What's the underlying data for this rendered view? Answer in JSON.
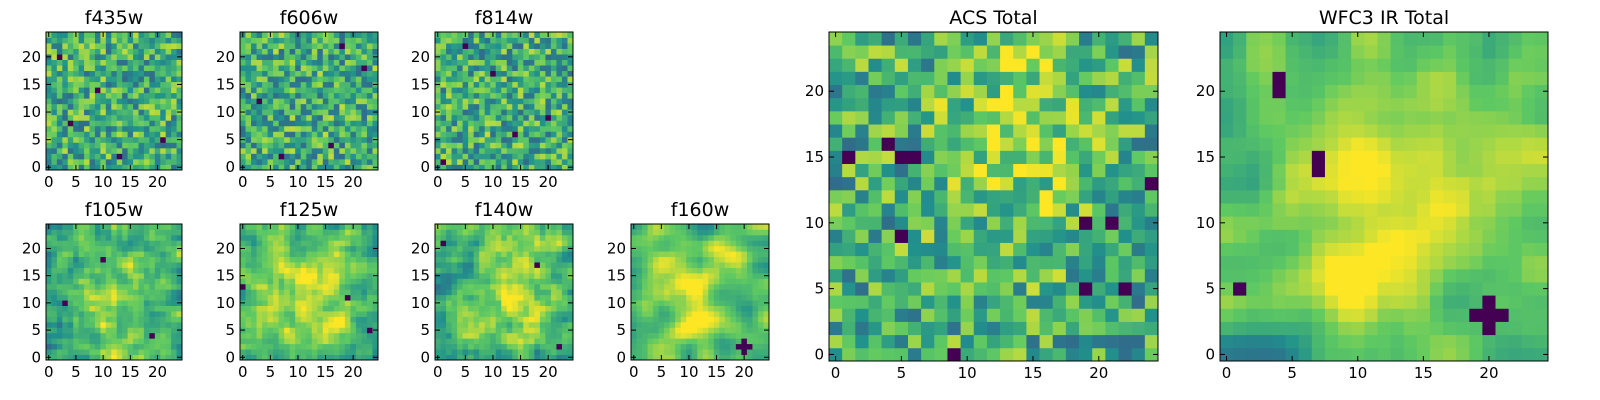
{
  "chart_data": [
    {
      "type": "heatmap",
      "title": "f435w",
      "grid_size": 25,
      "xticks": [
        0,
        5,
        10,
        15,
        20
      ],
      "yticks": [
        0,
        5,
        10,
        15,
        20
      ],
      "seed": 11,
      "smooth": 0,
      "dark_pixels": [
        [
          2,
          20
        ],
        [
          4,
          8
        ],
        [
          21,
          5
        ],
        [
          13,
          2
        ],
        [
          9,
          14
        ]
      ],
      "bright_blob": null
    },
    {
      "type": "heatmap",
      "title": "f606w",
      "grid_size": 25,
      "xticks": [
        0,
        5,
        10,
        15,
        20
      ],
      "yticks": [
        0,
        5,
        10,
        15,
        20
      ],
      "seed": 23,
      "smooth": 0,
      "dark_pixels": [
        [
          3,
          12
        ],
        [
          16,
          4
        ],
        [
          22,
          18
        ],
        [
          7,
          2
        ],
        [
          18,
          22
        ]
      ],
      "bright_blob": null
    },
    {
      "type": "heatmap",
      "title": "f814w",
      "grid_size": 25,
      "xticks": [
        0,
        5,
        10,
        15,
        20
      ],
      "yticks": [
        0,
        5,
        10,
        15,
        20
      ],
      "seed": 37,
      "smooth": 0,
      "dark_pixels": [
        [
          1,
          1
        ],
        [
          10,
          17
        ],
        [
          20,
          9
        ],
        [
          5,
          22
        ],
        [
          14,
          6
        ]
      ],
      "bright_blob": null
    },
    {
      "type": "heatmap",
      "title": "f105w",
      "grid_size": 25,
      "xticks": [
        0,
        5,
        10,
        15,
        20
      ],
      "yticks": [
        0,
        5,
        10,
        15,
        20
      ],
      "seed": 41,
      "smooth": 1,
      "dark_pixels": [
        [
          10,
          18
        ],
        [
          3,
          10
        ],
        [
          19,
          4
        ]
      ],
      "bright_blob": [
        12,
        10,
        5
      ]
    },
    {
      "type": "heatmap",
      "title": "f125w",
      "grid_size": 25,
      "xticks": [
        0,
        5,
        10,
        15,
        20
      ],
      "yticks": [
        0,
        5,
        10,
        15,
        20
      ],
      "seed": 53,
      "smooth": 1,
      "dark_pixels": [
        [
          0,
          13
        ],
        [
          19,
          11
        ],
        [
          23,
          5
        ]
      ],
      "bright_blob": [
        13,
        12,
        6
      ]
    },
    {
      "type": "heatmap",
      "title": "f140w",
      "grid_size": 25,
      "xticks": [
        0,
        5,
        10,
        15,
        20
      ],
      "yticks": [
        0,
        5,
        10,
        15,
        20
      ],
      "seed": 67,
      "smooth": 1,
      "dark_pixels": [
        [
          1,
          21
        ],
        [
          22,
          2
        ],
        [
          18,
          17
        ]
      ],
      "bright_blob": [
        14,
        13,
        5
      ]
    },
    {
      "type": "heatmap",
      "title": "f160w",
      "grid_size": 25,
      "xticks": [
        0,
        5,
        10,
        15,
        20
      ],
      "yticks": [
        0,
        5,
        10,
        15,
        20
      ],
      "seed": 71,
      "smooth": 2,
      "dark_pixels": [
        [
          20,
          2
        ],
        [
          19,
          2
        ],
        [
          21,
          2
        ],
        [
          20,
          3
        ],
        [
          20,
          1
        ]
      ],
      "bright_blob": [
        12,
        11,
        6
      ]
    },
    {
      "type": "heatmap",
      "title": "ACS Total",
      "grid_size": 25,
      "xticks": [
        0,
        5,
        10,
        15,
        20
      ],
      "yticks": [
        0,
        5,
        10,
        15,
        20
      ],
      "seed": 83,
      "smooth": 0,
      "dark_pixels": [
        [
          1,
          15
        ],
        [
          4,
          16
        ],
        [
          5,
          15
        ],
        [
          6,
          15
        ],
        [
          5,
          9
        ],
        [
          19,
          10
        ],
        [
          21,
          10
        ],
        [
          19,
          5
        ],
        [
          22,
          5
        ],
        [
          24,
          13
        ],
        [
          9,
          0
        ]
      ],
      "bright_blob": [
        14,
        17,
        4
      ]
    },
    {
      "type": "heatmap",
      "title": "WFC3 IR Total",
      "grid_size": 25,
      "xticks": [
        0,
        5,
        10,
        15,
        20
      ],
      "yticks": [
        0,
        5,
        10,
        15,
        20
      ],
      "seed": 97,
      "smooth": 2,
      "dark_pixels": [
        [
          4,
          20
        ],
        [
          4,
          21
        ],
        [
          7,
          14
        ],
        [
          7,
          15
        ],
        [
          1,
          5
        ],
        [
          19,
          3
        ],
        [
          20,
          3
        ],
        [
          21,
          3
        ],
        [
          20,
          2
        ],
        [
          20,
          4
        ]
      ],
      "bright_blob": [
        12,
        12,
        6
      ]
    }
  ],
  "colormap": {
    "name": "viridis",
    "stops": [
      "#440154",
      "#3b528b",
      "#21918c",
      "#5ec962",
      "#fde725"
    ]
  }
}
